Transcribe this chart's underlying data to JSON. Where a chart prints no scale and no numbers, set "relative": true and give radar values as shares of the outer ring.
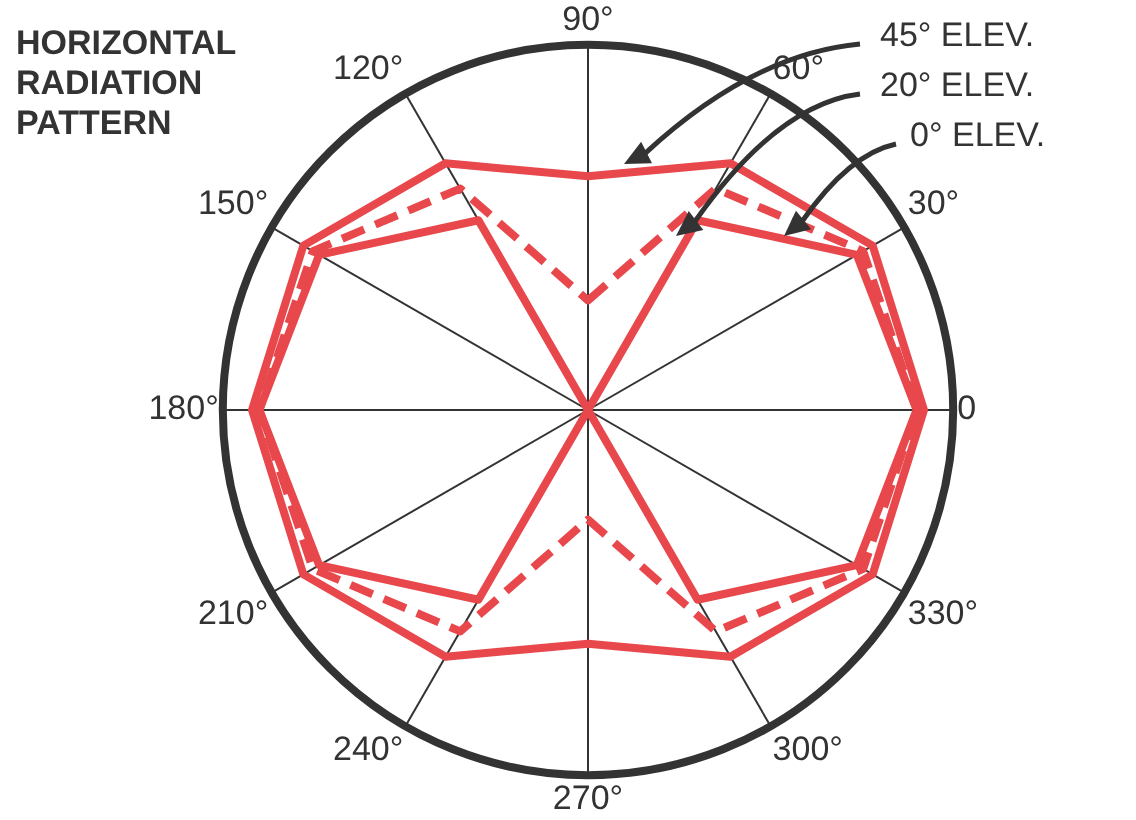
{
  "chart_data": {
    "type": "radar",
    "title": "HORIZONTAL RADIATION PATTERN",
    "categories": [
      "90°",
      "60°",
      "30°",
      "0",
      "330°",
      "300°",
      "270°",
      "240°",
      "210°",
      "180°",
      "150°",
      "120°"
    ],
    "relative": true,
    "grid": true,
    "legend": false,
    "series": [
      {
        "name": "45° ELEV.",
        "color": "#e8474b",
        "line_style": "solid",
        "values": [
          0.64,
          0.78,
          0.9,
          0.92,
          0.9,
          0.78,
          0.64,
          0.78,
          0.9,
          0.92,
          0.9,
          0.78
        ]
      },
      {
        "name": "20° ELEV.",
        "color": "#e8474b",
        "line_style": "dashed",
        "values": [
          0.3,
          0.7,
          0.87,
          0.9,
          0.87,
          0.7,
          0.3,
          0.7,
          0.87,
          0.9,
          0.87,
          0.7
        ]
      },
      {
        "name": "0° ELEV.",
        "color": "#e8474b",
        "line_style": "solid",
        "values": [
          0,
          0.6,
          0.85,
          0.9,
          0.85,
          0.6,
          0,
          0.6,
          0.85,
          0.9,
          0.85,
          0.6
        ]
      }
    ]
  }
}
